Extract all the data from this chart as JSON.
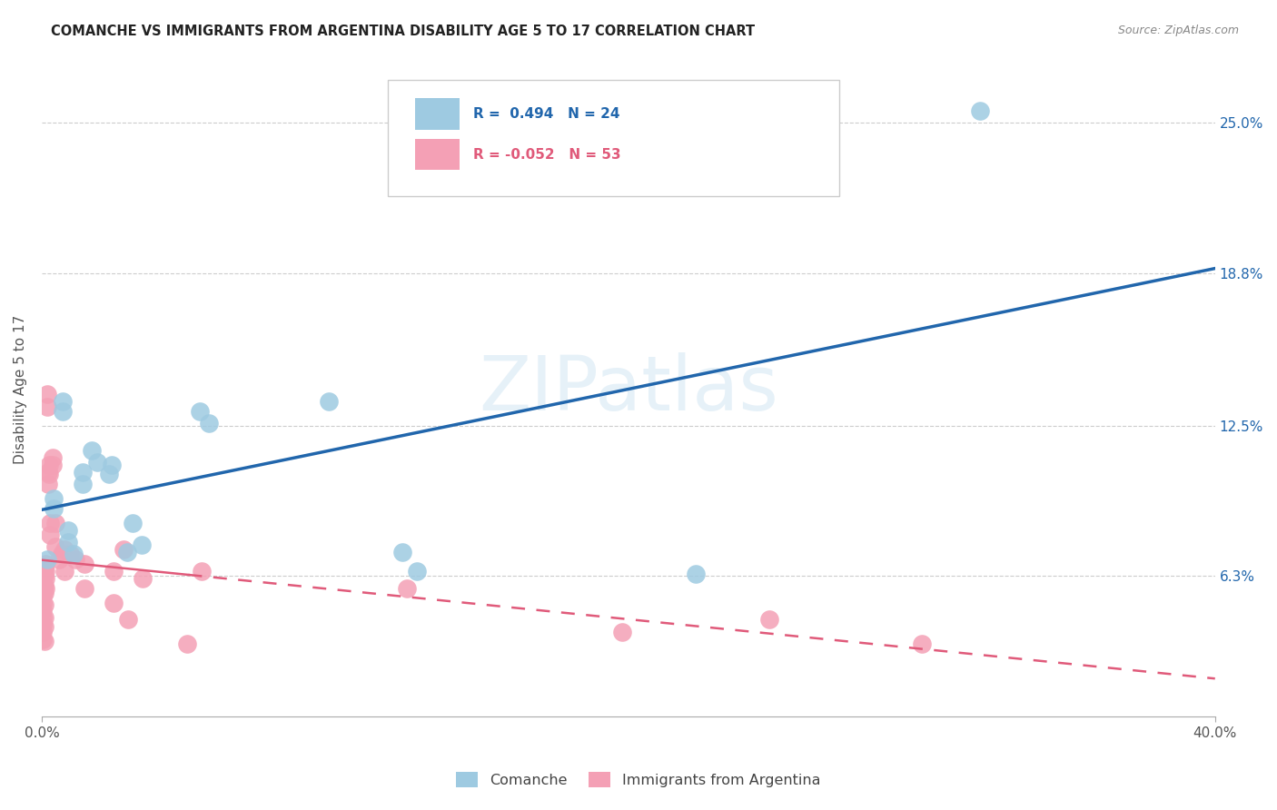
{
  "title": "COMANCHE VS IMMIGRANTS FROM ARGENTINA DISABILITY AGE 5 TO 17 CORRELATION CHART",
  "source": "Source: ZipAtlas.com",
  "ylabel": "Disability Age 5 to 17",
  "ytick_labels": [
    "6.3%",
    "12.5%",
    "18.8%",
    "25.0%"
  ],
  "ytick_values": [
    6.3,
    12.5,
    18.8,
    25.0
  ],
  "xlim": [
    0.0,
    40.0
  ],
  "ylim": [
    0.5,
    27.5
  ],
  "legend_blue_r": "0.494",
  "legend_blue_n": "24",
  "legend_pink_r": "-0.052",
  "legend_pink_n": "53",
  "blue_scatter_color": "#9ecae1",
  "pink_scatter_color": "#f4a0b5",
  "blue_line_color": "#2166ac",
  "pink_line_color": "#e05a7a",
  "watermark": "ZIPatlas",
  "comanche_points": [
    [
      0.2,
      7.0
    ],
    [
      0.4,
      9.5
    ],
    [
      0.4,
      9.1
    ],
    [
      0.7,
      13.5
    ],
    [
      0.7,
      13.1
    ],
    [
      0.9,
      8.2
    ],
    [
      0.9,
      7.7
    ],
    [
      1.1,
      7.2
    ],
    [
      1.4,
      10.6
    ],
    [
      1.4,
      10.1
    ],
    [
      1.7,
      11.5
    ],
    [
      1.9,
      11.0
    ],
    [
      2.3,
      10.5
    ],
    [
      2.4,
      10.9
    ],
    [
      2.9,
      7.3
    ],
    [
      3.1,
      8.5
    ],
    [
      3.4,
      7.6
    ],
    [
      5.4,
      13.1
    ],
    [
      5.7,
      12.6
    ],
    [
      9.8,
      13.5
    ],
    [
      12.3,
      7.3
    ],
    [
      12.8,
      6.5
    ],
    [
      22.3,
      6.4
    ],
    [
      32.0,
      25.5
    ]
  ],
  "argentina_points": [
    [
      0.04,
      6.3
    ],
    [
      0.04,
      6.0
    ],
    [
      0.04,
      5.8
    ],
    [
      0.04,
      5.5
    ],
    [
      0.04,
      5.2
    ],
    [
      0.04,
      4.9
    ],
    [
      0.04,
      4.6
    ],
    [
      0.04,
      4.3
    ],
    [
      0.04,
      4.0
    ],
    [
      0.04,
      3.7
    ],
    [
      0.08,
      6.6
    ],
    [
      0.08,
      6.3
    ],
    [
      0.08,
      5.9
    ],
    [
      0.08,
      5.6
    ],
    [
      0.08,
      5.1
    ],
    [
      0.08,
      4.6
    ],
    [
      0.08,
      4.2
    ],
    [
      0.08,
      3.6
    ],
    [
      0.12,
      6.8
    ],
    [
      0.12,
      6.5
    ],
    [
      0.12,
      6.2
    ],
    [
      0.12,
      5.8
    ],
    [
      0.18,
      13.8
    ],
    [
      0.18,
      13.3
    ],
    [
      0.22,
      10.6
    ],
    [
      0.22,
      10.1
    ],
    [
      0.25,
      10.9
    ],
    [
      0.25,
      10.5
    ],
    [
      0.28,
      8.5
    ],
    [
      0.28,
      8.0
    ],
    [
      0.38,
      11.2
    ],
    [
      0.38,
      10.9
    ],
    [
      0.48,
      8.5
    ],
    [
      0.48,
      7.5
    ],
    [
      0.58,
      7.0
    ],
    [
      0.68,
      7.2
    ],
    [
      0.78,
      7.4
    ],
    [
      0.78,
      6.5
    ],
    [
      0.95,
      7.2
    ],
    [
      1.15,
      7.0
    ],
    [
      1.45,
      6.8
    ],
    [
      1.45,
      5.8
    ],
    [
      2.45,
      6.5
    ],
    [
      2.45,
      5.2
    ],
    [
      2.78,
      7.4
    ],
    [
      2.95,
      4.5
    ],
    [
      3.45,
      6.2
    ],
    [
      4.95,
      3.5
    ],
    [
      5.45,
      6.5
    ],
    [
      12.45,
      5.8
    ],
    [
      19.8,
      4.0
    ],
    [
      24.8,
      4.5
    ],
    [
      30.0,
      3.5
    ]
  ]
}
